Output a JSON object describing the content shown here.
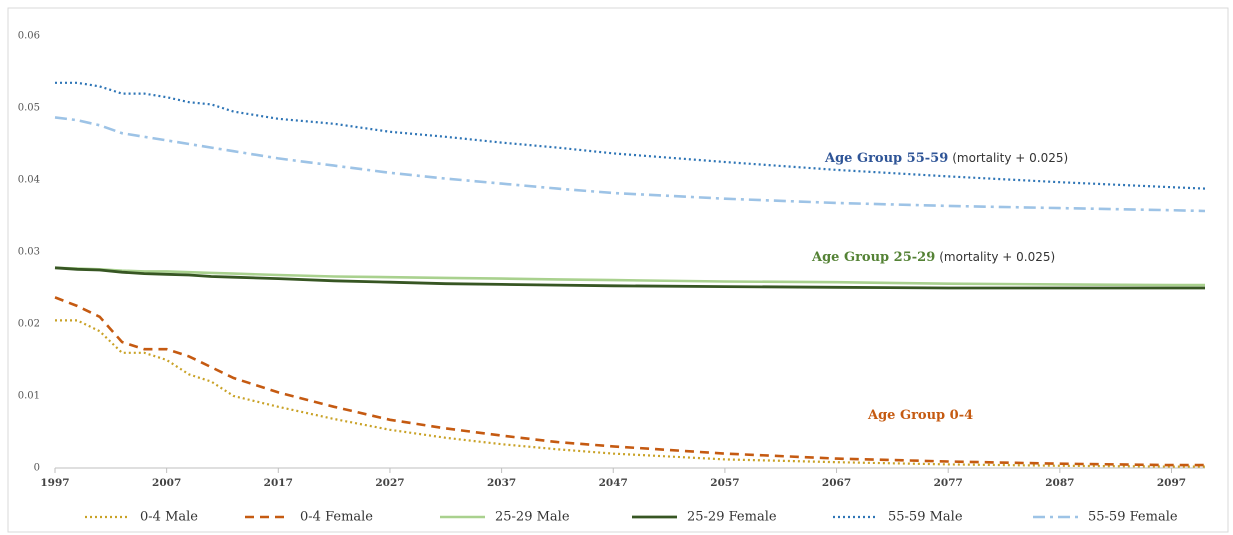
{
  "chart_data": {
    "type": "line",
    "x": [
      1997,
      1999,
      2001,
      2003,
      2005,
      2007,
      2009,
      2011,
      2013,
      2017,
      2022,
      2027,
      2032,
      2037,
      2042,
      2047,
      2057,
      2067,
      2077,
      2087,
      2097,
      2100
    ],
    "series": [
      {
        "name": "0-4 Male",
        "color": "#c9a227",
        "dash": "dotted",
        "width": 2.2,
        "values": [
          0.0205,
          0.0205,
          0.019,
          0.016,
          0.016,
          0.015,
          0.013,
          0.012,
          0.01,
          0.0085,
          0.0068,
          0.0053,
          0.0042,
          0.0033,
          0.0026,
          0.002,
          0.0012,
          0.0008,
          0.0005,
          0.0003,
          0.0002,
          0.0002
        ]
      },
      {
        "name": "0-4 Female",
        "color": "#c55a11",
        "dash": "dashed",
        "width": 2.6,
        "values": [
          0.0237,
          0.0225,
          0.021,
          0.0175,
          0.0165,
          0.0165,
          0.0155,
          0.014,
          0.0125,
          0.0105,
          0.0085,
          0.0067,
          0.0055,
          0.0045,
          0.0036,
          0.003,
          0.002,
          0.0013,
          0.0009,
          0.0006,
          0.0004,
          0.0004
        ]
      },
      {
        "name": "25-29 Male",
        "color": "#a9d18e",
        "dash": "solid",
        "width": 2.6,
        "values": [
          0.0278,
          0.0277,
          0.0276,
          0.0274,
          0.0273,
          0.0273,
          0.0272,
          0.0271,
          0.027,
          0.0268,
          0.0266,
          0.0265,
          0.0264,
          0.0263,
          0.0262,
          0.0261,
          0.0259,
          0.0258,
          0.0256,
          0.0255,
          0.0254,
          0.0254
        ]
      },
      {
        "name": "25-29 Female",
        "color": "#375623",
        "dash": "solid",
        "width": 2.8,
        "values": [
          0.0278,
          0.0276,
          0.0275,
          0.0272,
          0.027,
          0.0269,
          0.0268,
          0.0266,
          0.0265,
          0.0263,
          0.026,
          0.0258,
          0.0256,
          0.0255,
          0.0254,
          0.0253,
          0.0252,
          0.0251,
          0.025,
          0.025,
          0.025,
          0.025
        ]
      },
      {
        "name": "55-59 Male",
        "color": "#2e75b6",
        "dash": "dotted",
        "width": 2.2,
        "values": [
          0.0535,
          0.0535,
          0.053,
          0.052,
          0.052,
          0.0515,
          0.0508,
          0.0505,
          0.0495,
          0.0485,
          0.0478,
          0.0467,
          0.046,
          0.0452,
          0.0445,
          0.0437,
          0.0425,
          0.0414,
          0.0405,
          0.0397,
          0.039,
          0.0388
        ]
      },
      {
        "name": "55-59 Female",
        "color": "#9dc3e6",
        "dash": "dashdot",
        "width": 2.6,
        "values": [
          0.0487,
          0.0483,
          0.0476,
          0.0465,
          0.046,
          0.0455,
          0.045,
          0.0445,
          0.044,
          0.043,
          0.042,
          0.041,
          0.0402,
          0.0395,
          0.0388,
          0.0382,
          0.0374,
          0.0368,
          0.0364,
          0.0361,
          0.0358,
          0.0357
        ]
      }
    ],
    "xlim": [
      1997,
      2100
    ],
    "xticks": [
      1997,
      2007,
      2017,
      2027,
      2037,
      2047,
      2057,
      2067,
      2077,
      2087,
      2097
    ],
    "ylim": [
      0,
      0.06
    ],
    "yticks": [
      0,
      0.01,
      0.02,
      0.03,
      0.04,
      0.05,
      0.06
    ],
    "grid": false,
    "legend": "bottom",
    "annotations": [
      {
        "text": "Age Group 55-59",
        "note": "(mortality + 0.025)",
        "color": "#2f5597"
      },
      {
        "text": "Age Group 25-29",
        "note": "(mortality + 0.025)",
        "color": "#548235"
      },
      {
        "text": "Age Group 0-4",
        "color": "#c55a11"
      }
    ]
  }
}
